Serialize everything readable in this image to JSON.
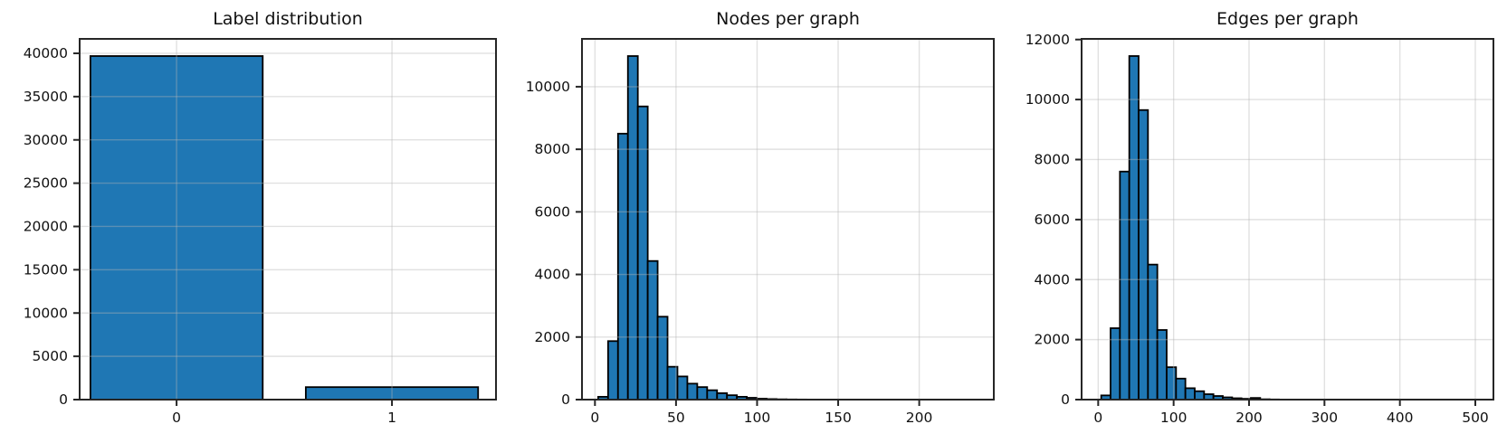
{
  "figure": {
    "background": "#ffffff",
    "style": {
      "bar_fill": "#1f77b4",
      "bar_edge": "#000000",
      "grid_color": "#b3b3b3",
      "grid_alpha": 0.4,
      "spine_color": "#262626",
      "text_color": "#111111"
    }
  },
  "chart_data": [
    {
      "id": "label-distribution",
      "type": "bar",
      "title": "Label distribution",
      "categories": [
        "0",
        "1"
      ],
      "values": [
        39684,
        1443
      ],
      "bar_width": 0.8,
      "xlim": [
        -0.45,
        1.483
      ],
      "ylim": [
        0,
        41668
      ],
      "yticks": [
        0,
        5000,
        10000,
        15000,
        20000,
        25000,
        30000,
        35000,
        40000
      ],
      "grid": true,
      "legend": false
    },
    {
      "id": "nodes-per-graph",
      "type": "histogram",
      "title": "Nodes per graph",
      "bin_start": 2,
      "bin_width": 6.11,
      "counts": [
        90,
        1870,
        8500,
        10980,
        9370,
        4430,
        2650,
        1050,
        740,
        510,
        400,
        300,
        205,
        140,
        90,
        58,
        30,
        18,
        10,
        6,
        4,
        2,
        0,
        0,
        0,
        0,
        0,
        0,
        0,
        0,
        0,
        0,
        0,
        0,
        0,
        0
      ],
      "xlim": [
        -8,
        246
      ],
      "ylim": [
        0,
        11529
      ],
      "xticks": [
        0,
        50,
        100,
        150,
        200
      ],
      "yticks": [
        0,
        2000,
        4000,
        6000,
        8000,
        10000
      ],
      "grid": true,
      "legend": false
    },
    {
      "id": "edges-per-graph",
      "type": "histogram",
      "title": "Edges per graph",
      "bin_start": 4,
      "bin_width": 12.4,
      "counts": [
        140,
        2380,
        7600,
        11450,
        9650,
        4500,
        2320,
        1080,
        700,
        380,
        280,
        180,
        120,
        75,
        45,
        28,
        55,
        12,
        6,
        3,
        2,
        0,
        0,
        0,
        0,
        0,
        0,
        0,
        0,
        0,
        0,
        0,
        0,
        0,
        0,
        0,
        0,
        0,
        0,
        0
      ],
      "xlim": [
        -22,
        524
      ],
      "ylim": [
        0,
        12022
      ],
      "xticks": [
        0,
        100,
        200,
        300,
        400,
        500
      ],
      "yticks": [
        0,
        2000,
        4000,
        6000,
        8000,
        10000,
        12000
      ],
      "grid": true,
      "legend": false
    }
  ]
}
